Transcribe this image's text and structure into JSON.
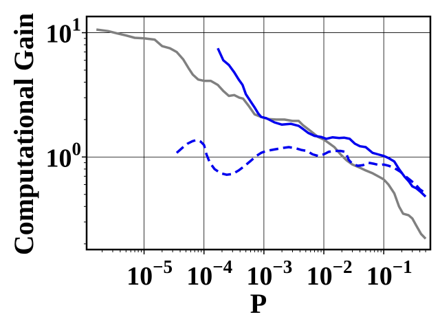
{
  "chart_data": {
    "type": "line",
    "title": "",
    "xlabel": "P",
    "ylabel": "Computational Gain",
    "x_scale": "log",
    "y_scale": "log",
    "xlim": [
      1.1e-06,
      0.6
    ],
    "ylim": [
      0.18,
      13.5
    ],
    "grid": true,
    "legend": "none",
    "xticks": [
      {
        "value": 1e-05,
        "base": "10",
        "exp": "−5"
      },
      {
        "value": 0.0001,
        "base": "10",
        "exp": "−4"
      },
      {
        "value": 0.001,
        "base": "10",
        "exp": "−3"
      },
      {
        "value": 0.01,
        "base": "10",
        "exp": "−2"
      },
      {
        "value": 0.1,
        "base": "10",
        "exp": "−1"
      }
    ],
    "yticks": [
      {
        "value": 1,
        "base": "10",
        "exp": "0"
      },
      {
        "value": 10,
        "base": "10",
        "exp": "1"
      }
    ],
    "series": [
      {
        "color": "#808080",
        "dash": "solid",
        "points": [
          [
            1.6e-06,
            10.6
          ],
          [
            2.5e-06,
            10.3
          ],
          [
            3.5e-06,
            9.9
          ],
          [
            5e-06,
            9.5
          ],
          [
            7e-06,
            9.1
          ],
          [
            1e-05,
            9.0
          ],
          [
            1.5e-05,
            8.8
          ],
          [
            2e-05,
            7.8
          ],
          [
            2.7e-05,
            7.5
          ],
          [
            3.5e-05,
            7.0
          ],
          [
            4.5e-05,
            6.1
          ],
          [
            5.5e-05,
            5.2
          ],
          [
            6.5e-05,
            4.6
          ],
          [
            8e-05,
            4.2
          ],
          [
            0.0001,
            4.1
          ],
          [
            0.00013,
            4.1
          ],
          [
            0.00017,
            3.8
          ],
          [
            0.00021,
            3.4
          ],
          [
            0.00026,
            3.1
          ],
          [
            0.00032,
            3.15
          ],
          [
            0.00039,
            3.0
          ],
          [
            0.00045,
            2.95
          ],
          [
            0.00055,
            2.6
          ],
          [
            0.0007,
            2.2
          ],
          [
            0.0009,
            2.1
          ],
          [
            0.0012,
            2.02
          ],
          [
            0.0016,
            2.0
          ],
          [
            0.0022,
            2.0
          ],
          [
            0.003,
            1.95
          ],
          [
            0.0038,
            1.95
          ],
          [
            0.0045,
            1.8
          ],
          [
            0.006,
            1.62
          ],
          [
            0.008,
            1.45
          ],
          [
            0.01,
            1.38
          ],
          [
            0.012,
            1.3
          ],
          [
            0.015,
            1.2
          ],
          [
            0.019,
            1.05
          ],
          [
            0.024,
            0.94
          ],
          [
            0.03,
            0.87
          ],
          [
            0.04,
            0.82
          ],
          [
            0.05,
            0.78
          ],
          [
            0.065,
            0.74
          ],
          [
            0.085,
            0.69
          ],
          [
            0.1,
            0.66
          ],
          [
            0.12,
            0.6
          ],
          [
            0.15,
            0.51
          ],
          [
            0.18,
            0.4
          ],
          [
            0.21,
            0.35
          ],
          [
            0.26,
            0.34
          ],
          [
            0.3,
            0.32
          ],
          [
            0.35,
            0.28
          ],
          [
            0.42,
            0.24
          ],
          [
            0.5,
            0.22
          ]
        ]
      },
      {
        "color": "#0000ee",
        "dash": "solid",
        "points": [
          [
            0.00017,
            7.5
          ],
          [
            0.00021,
            6.0
          ],
          [
            0.00026,
            5.5
          ],
          [
            0.00032,
            4.8
          ],
          [
            0.00038,
            4.2
          ],
          [
            0.00044,
            3.8
          ],
          [
            0.0005,
            3.2
          ],
          [
            0.0006,
            2.8
          ],
          [
            0.0007,
            2.5
          ],
          [
            0.0008,
            2.25
          ],
          [
            0.0009,
            2.1
          ],
          [
            0.0011,
            2.05
          ],
          [
            0.0015,
            1.9
          ],
          [
            0.002,
            1.82
          ],
          [
            0.0028,
            1.85
          ],
          [
            0.0038,
            1.78
          ],
          [
            0.0045,
            1.68
          ],
          [
            0.0055,
            1.56
          ],
          [
            0.007,
            1.48
          ],
          [
            0.009,
            1.45
          ],
          [
            0.011,
            1.4
          ],
          [
            0.014,
            1.44
          ],
          [
            0.018,
            1.42
          ],
          [
            0.022,
            1.43
          ],
          [
            0.027,
            1.4
          ],
          [
            0.033,
            1.28
          ],
          [
            0.04,
            1.22
          ],
          [
            0.05,
            1.2
          ],
          [
            0.065,
            1.08
          ],
          [
            0.08,
            1.05
          ],
          [
            0.1,
            1.02
          ],
          [
            0.12,
            0.98
          ],
          [
            0.15,
            0.92
          ],
          [
            0.18,
            0.8
          ],
          [
            0.22,
            0.7
          ],
          [
            0.26,
            0.64
          ],
          [
            0.3,
            0.58
          ],
          [
            0.35,
            0.56
          ],
          [
            0.42,
            0.52
          ],
          [
            0.5,
            0.48
          ]
        ]
      },
      {
        "color": "#0000ee",
        "dash": "dashed",
        "points": [
          [
            3.5e-05,
            1.08
          ],
          [
            4.3e-05,
            1.18
          ],
          [
            5.3e-05,
            1.28
          ],
          [
            6.4e-05,
            1.34
          ],
          [
            7.5e-05,
            1.37
          ],
          [
            8.8e-05,
            1.33
          ],
          [
            0.0001,
            1.25
          ],
          [
            0.00011,
            1.05
          ],
          [
            0.000125,
            0.9
          ],
          [
            0.00015,
            0.8
          ],
          [
            0.00019,
            0.74
          ],
          [
            0.00024,
            0.72
          ],
          [
            0.0003,
            0.73
          ],
          [
            0.00038,
            0.78
          ],
          [
            0.00048,
            0.85
          ],
          [
            0.0006,
            0.93
          ],
          [
            0.00075,
            1.02
          ],
          [
            0.0009,
            1.08
          ],
          [
            0.0011,
            1.12
          ],
          [
            0.0015,
            1.15
          ],
          [
            0.002,
            1.18
          ],
          [
            0.0026,
            1.2
          ],
          [
            0.0033,
            1.18
          ],
          [
            0.0042,
            1.14
          ],
          [
            0.0052,
            1.12
          ],
          [
            0.0065,
            1.05
          ],
          [
            0.008,
            1.02
          ],
          [
            0.01,
            1.05
          ],
          [
            0.012,
            1.1
          ],
          [
            0.015,
            1.12
          ],
          [
            0.019,
            1.12
          ],
          [
            0.023,
            1.1
          ],
          [
            0.026,
            0.95
          ],
          [
            0.03,
            0.88
          ],
          [
            0.037,
            0.85
          ],
          [
            0.045,
            0.86
          ],
          [
            0.055,
            0.9
          ],
          [
            0.07,
            0.88
          ],
          [
            0.085,
            0.86
          ],
          [
            0.1,
            0.87
          ],
          [
            0.12,
            0.85
          ],
          [
            0.14,
            0.83
          ],
          [
            0.16,
            0.8
          ],
          [
            0.19,
            0.76
          ],
          [
            0.23,
            0.7
          ],
          [
            0.28,
            0.65
          ],
          [
            0.34,
            0.6
          ],
          [
            0.4,
            0.55
          ],
          [
            0.47,
            0.52
          ],
          [
            0.5,
            0.5
          ]
        ]
      }
    ]
  }
}
